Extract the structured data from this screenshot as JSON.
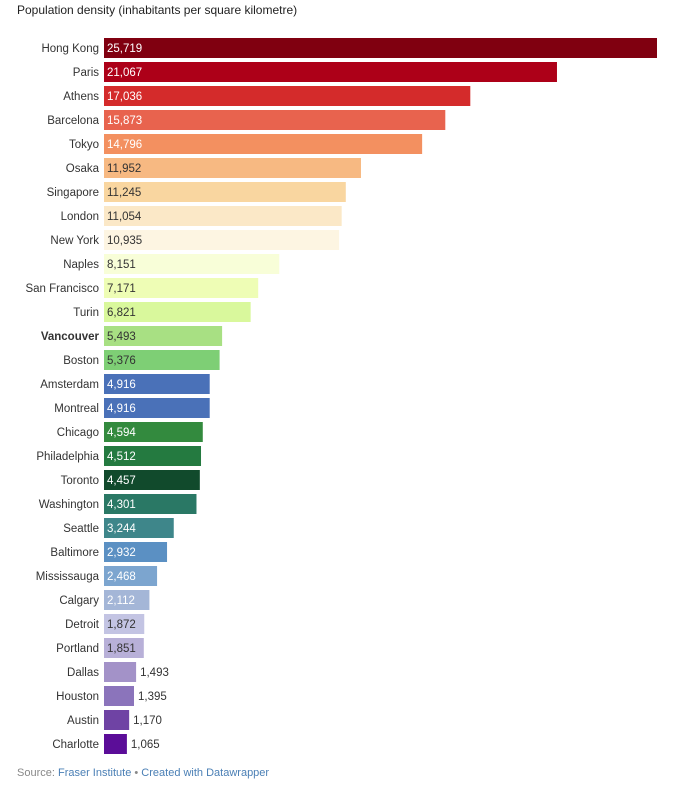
{
  "chart_data": {
    "type": "bar",
    "orientation": "horizontal",
    "title": "Population density (inhabitants per square kilometre)",
    "xlabel": "",
    "ylabel": "",
    "xlim": [
      0,
      25719
    ],
    "grid": false,
    "categories": [
      "Hong Kong",
      "Paris",
      "Athens",
      "Barcelona",
      "Tokyo",
      "Osaka",
      "Singapore",
      "London",
      "New York",
      "Naples",
      "San Francisco",
      "Turin",
      "Vancouver",
      "Boston",
      "Amsterdam",
      "Montreal",
      "Chicago",
      "Philadelphia",
      "Toronto",
      "Washington",
      "Seattle",
      "Baltimore",
      "Mississauga",
      "Calgary",
      "Detroit",
      "Portland",
      "Dallas",
      "Houston",
      "Austin",
      "Charlotte"
    ],
    "values": [
      25719,
      21067,
      17036,
      15873,
      14796,
      11952,
      11245,
      11054,
      10935,
      8151,
      7171,
      6821,
      5493,
      5376,
      4916,
      4916,
      4594,
      4512,
      4457,
      4301,
      3244,
      2932,
      2468,
      2112,
      1872,
      1851,
      1493,
      1395,
      1170,
      1065
    ],
    "value_labels": [
      "25,719",
      "21,067",
      "17,036",
      "15,873",
      "14,796",
      "11,952",
      "11,245",
      "11,054",
      "10,935",
      "8,151",
      "7,171",
      "6,821",
      "5,493",
      "5,376",
      "4,916",
      "4,916",
      "4,594",
      "4,512",
      "4,457",
      "4,301",
      "3,244",
      "2,932",
      "2,468",
      "2,112",
      "1,872",
      "1,851",
      "1,493",
      "1,395",
      "1,170",
      "1,065"
    ],
    "colors": [
      "#800010",
      "#ad0018",
      "#d42b2b",
      "#e8634e",
      "#f39060",
      "#f7b982",
      "#f9d6a0",
      "#fbe8c7",
      "#fdf5e2",
      "#f8fed8",
      "#eefdb5",
      "#d9f89c",
      "#a8e083",
      "#7ecf75",
      "#4a71b8",
      "#4a71b8",
      "#338a3e",
      "#247a40",
      "#114a2c",
      "#2a7865",
      "#3e868a",
      "#5b90c3",
      "#7ca5cf",
      "#a4b6d7",
      "#c3c4e3",
      "#b8b0d8",
      "#a392c8",
      "#8b74bb",
      "#6f43a4",
      "#5b0d98"
    ],
    "label_colors": [
      "#ffffff",
      "#ffffff",
      "#ffffff",
      "#ffffff",
      "#ffffff",
      "#333333",
      "#333333",
      "#333333",
      "#333333",
      "#333333",
      "#333333",
      "#333333",
      "#333333",
      "#333333",
      "#ffffff",
      "#ffffff",
      "#ffffff",
      "#ffffff",
      "#ffffff",
      "#ffffff",
      "#ffffff",
      "#ffffff",
      "#ffffff",
      "#ffffff",
      "#333333",
      "#333333",
      "#333333",
      "#333333",
      "#333333",
      "#333333"
    ],
    "highlighted": [
      "Vancouver"
    ]
  },
  "footer": {
    "source_prefix": "Source: ",
    "source_name": "Fraser Institute",
    "separator": " • ",
    "credit": "Created with Datawrapper"
  }
}
